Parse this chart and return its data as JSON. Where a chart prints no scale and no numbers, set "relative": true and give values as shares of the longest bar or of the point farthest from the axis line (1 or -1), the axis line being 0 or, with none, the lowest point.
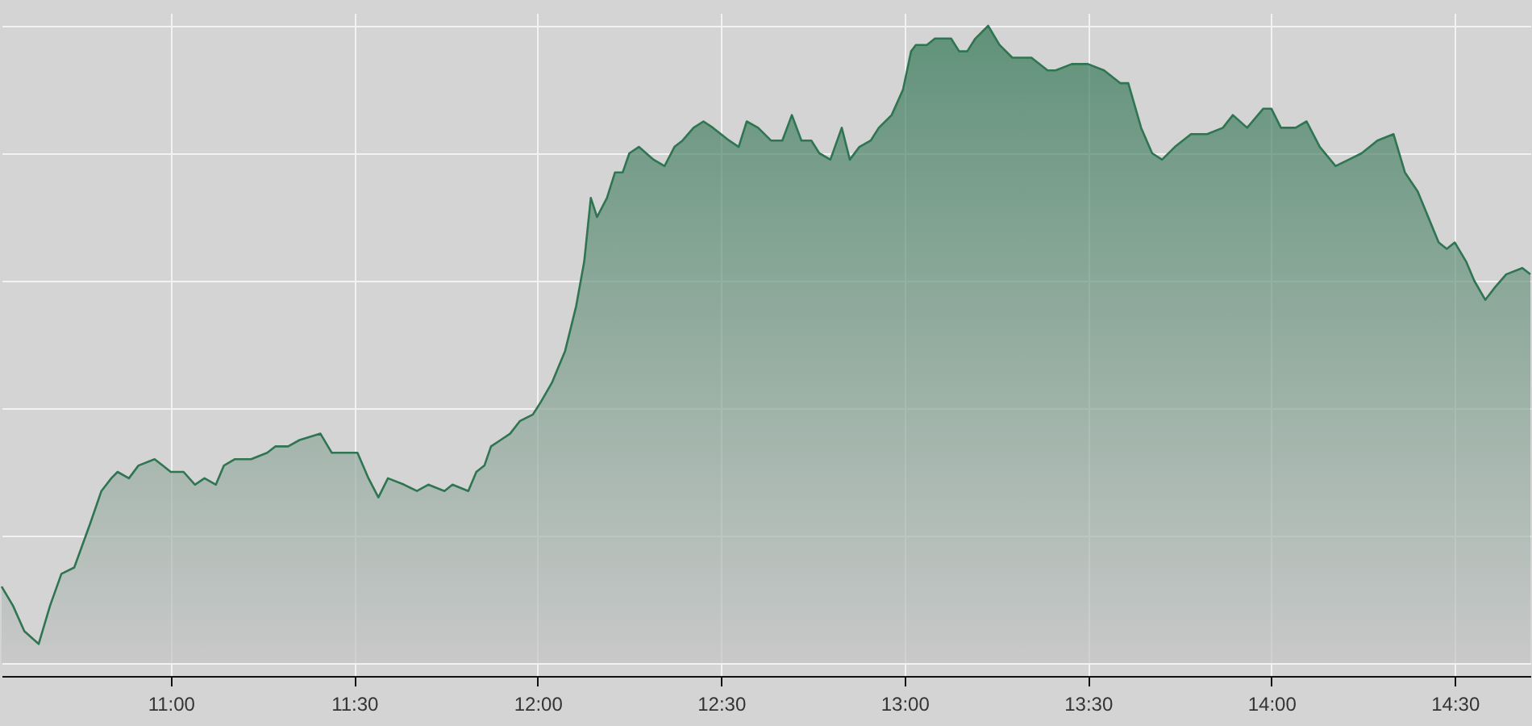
{
  "chart_data": {
    "type": "area",
    "relative": true,
    "grid": true,
    "xlim": [
      10.539,
      14.706
    ],
    "xticks": [
      {
        "value": 11,
        "label": "11:00"
      },
      {
        "value": 11.5,
        "label": "11:30"
      },
      {
        "value": 12,
        "label": "12:00"
      },
      {
        "value": 12.5,
        "label": "12:30"
      },
      {
        "value": 13,
        "label": "13:00"
      },
      {
        "value": 13.5,
        "label": "13:30"
      },
      {
        "value": 14,
        "label": "14:00"
      },
      {
        "value": 14.5,
        "label": "14:30"
      }
    ],
    "series": [
      {
        "color": "#2f7552",
        "x": [
          10.539,
          10.57,
          10.601,
          10.64,
          10.671,
          10.702,
          10.737,
          10.781,
          10.811,
          10.838,
          10.855,
          10.886,
          10.912,
          10.956,
          10.978,
          11.0,
          11.035,
          11.066,
          11.092,
          11.123,
          11.145,
          11.175,
          11.219,
          11.263,
          11.285,
          11.32,
          11.351,
          11.408,
          11.439,
          11.482,
          11.509,
          11.539,
          11.566,
          11.592,
          11.636,
          11.671,
          11.702,
          11.746,
          11.768,
          11.811,
          11.833,
          11.855,
          11.873,
          11.899,
          11.925,
          11.952,
          11.987,
          12.009,
          12.039,
          12.075,
          12.105,
          12.127,
          12.145,
          12.162,
          12.189,
          12.211,
          12.232,
          12.25,
          12.276,
          12.316,
          12.346,
          12.373,
          12.395,
          12.425,
          12.452,
          12.478,
          12.522,
          12.548,
          12.57,
          12.601,
          12.636,
          12.667,
          12.693,
          12.719,
          12.746,
          12.768,
          12.798,
          12.829,
          12.851,
          12.877,
          12.908,
          12.93,
          12.965,
          12.996,
          13.018,
          13.031,
          13.061,
          13.083,
          13.127,
          13.149,
          13.171,
          13.193,
          13.228,
          13.259,
          13.294,
          13.346,
          13.39,
          13.412,
          13.456,
          13.5,
          13.544,
          13.588,
          13.61,
          13.645,
          13.675,
          13.702,
          13.737,
          13.781,
          13.825,
          13.868,
          13.895,
          13.934,
          13.978,
          14.0,
          14.026,
          14.066,
          14.096,
          14.132,
          14.175,
          14.211,
          14.246,
          14.289,
          14.333,
          14.364,
          14.399,
          14.456,
          14.478,
          14.5,
          14.531,
          14.553,
          14.583,
          14.61,
          14.64,
          14.684,
          14.706
        ],
        "values": [
          0.12,
          0.09,
          0.05,
          0.03,
          0.09,
          0.14,
          0.15,
          0.22,
          0.27,
          0.29,
          0.3,
          0.29,
          0.31,
          0.32,
          0.31,
          0.3,
          0.3,
          0.28,
          0.29,
          0.28,
          0.31,
          0.32,
          0.32,
          0.33,
          0.34,
          0.34,
          0.35,
          0.36,
          0.33,
          0.33,
          0.33,
          0.29,
          0.26,
          0.29,
          0.28,
          0.27,
          0.28,
          0.27,
          0.28,
          0.27,
          0.3,
          0.31,
          0.34,
          0.35,
          0.36,
          0.38,
          0.39,
          0.41,
          0.44,
          0.49,
          0.56,
          0.63,
          0.73,
          0.7,
          0.73,
          0.77,
          0.77,
          0.8,
          0.81,
          0.79,
          0.78,
          0.81,
          0.82,
          0.84,
          0.85,
          0.84,
          0.82,
          0.81,
          0.85,
          0.84,
          0.82,
          0.82,
          0.86,
          0.82,
          0.82,
          0.8,
          0.79,
          0.84,
          0.79,
          0.81,
          0.82,
          0.84,
          0.86,
          0.9,
          0.96,
          0.97,
          0.97,
          0.98,
          0.98,
          0.96,
          0.96,
          0.98,
          1.0,
          0.97,
          0.95,
          0.95,
          0.93,
          0.93,
          0.94,
          0.94,
          0.93,
          0.91,
          0.91,
          0.84,
          0.8,
          0.79,
          0.81,
          0.83,
          0.83,
          0.84,
          0.86,
          0.84,
          0.87,
          0.87,
          0.84,
          0.84,
          0.85,
          0.81,
          0.78,
          0.79,
          0.8,
          0.82,
          0.83,
          0.77,
          0.74,
          0.66,
          0.65,
          0.66,
          0.63,
          0.6,
          0.57,
          0.59,
          0.61,
          0.62,
          0.61
        ]
      }
    ]
  }
}
